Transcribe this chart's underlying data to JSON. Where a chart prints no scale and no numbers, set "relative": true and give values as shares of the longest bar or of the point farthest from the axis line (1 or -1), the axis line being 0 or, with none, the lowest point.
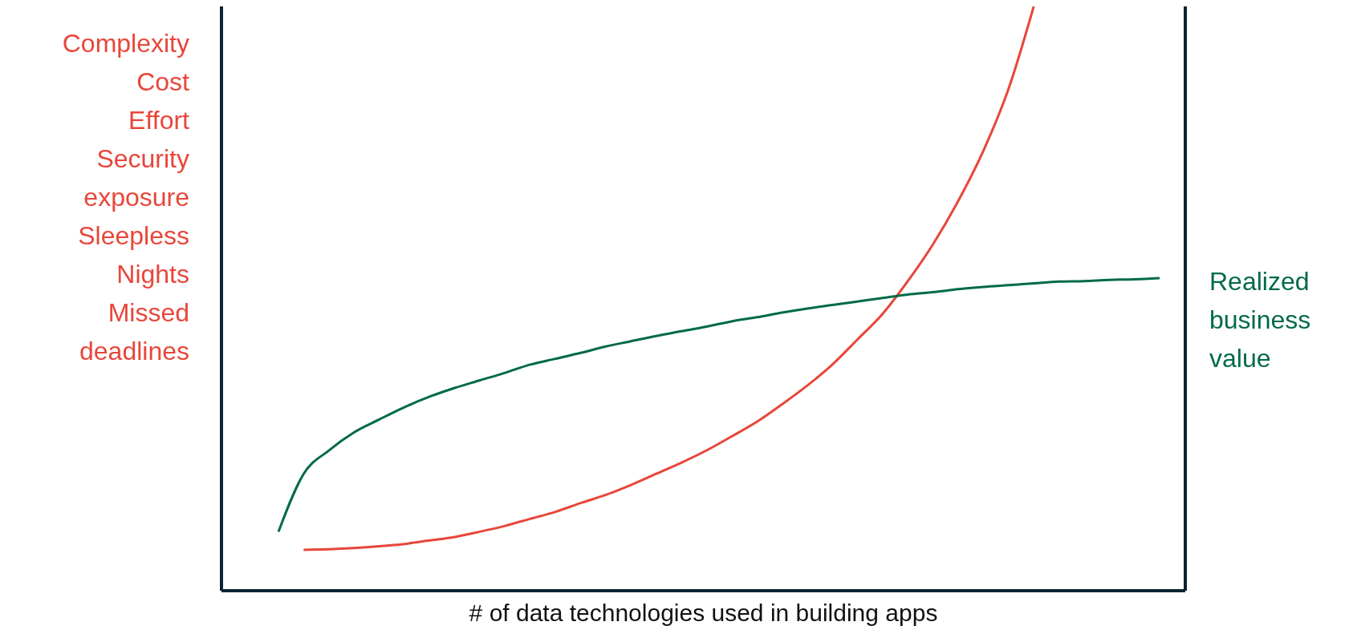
{
  "chart_data": {
    "type": "line",
    "relative": true,
    "xlabel": "# of data technologies used in building apps",
    "ylabel": "Complexity\nCost\nEffort\nSecurity\nexposure\nSleepless\nNights\nMissed\ndeadlines",
    "categories": [
      null,
      null,
      null,
      null,
      null,
      null,
      null,
      null,
      null,
      null,
      null,
      null,
      null,
      null,
      null,
      null,
      null,
      null,
      null,
      null,
      null,
      null,
      null,
      null,
      null,
      null,
      null,
      null,
      null,
      null,
      null,
      null,
      null,
      null,
      null,
      null
    ],
    "marker": "none",
    "line_style": "solid",
    "series": [
      {
        "color": "#e8463a",
        "values": [
          null,
          0.07,
          0.071,
          0.073,
          0.076,
          0.08,
          0.086,
          0.092,
          0.101,
          0.111,
          0.123,
          0.135,
          0.15,
          0.164,
          0.181,
          0.2,
          0.219,
          0.24,
          0.264,
          0.289,
          0.319,
          0.351,
          0.387,
          0.43,
          0.474,
          0.53,
          0.593,
          0.667,
          0.753,
          0.859,
          1,
          null,
          null,
          null,
          null,
          null
        ]
      },
      {
        "name": "Realized business value",
        "color": "#006a48",
        "values": [
          0.101,
          0.2,
          0.24,
          0.271,
          0.293,
          0.314,
          0.332,
          0.347,
          0.36,
          0.373,
          0.387,
          0.397,
          0.407,
          0.418,
          0.427,
          0.436,
          0.444,
          0.452,
          0.461,
          0.468,
          0.476,
          0.483,
          0.489,
          0.495,
          0.501,
          0.507,
          0.511,
          0.516,
          0.52,
          0.523,
          0.526,
          0.529,
          0.53,
          0.532,
          0.533,
          0.535
        ]
      }
    ]
  }
}
